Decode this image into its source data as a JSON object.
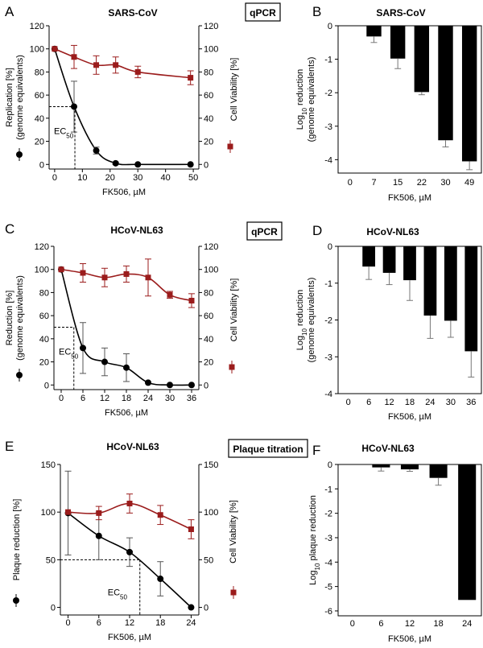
{
  "colors": {
    "primary": "#000000",
    "viability": "#9b1c1c",
    "bar": "#000000"
  },
  "chart_data": [
    {
      "panel": "A",
      "type": "line",
      "title": "SARS-CoV",
      "method": "qPCR",
      "xlabel": "FK506, µM",
      "ylabel_line1": "Replication [%]",
      "ylabel_line2": "(genome equivalents)",
      "y2label": "Cell Viability [%]",
      "xlim": [
        -2,
        52
      ],
      "ylim": [
        -4,
        120
      ],
      "xticks": [
        0,
        10,
        20,
        30,
        40,
        50
      ],
      "yticks": [
        0,
        20,
        40,
        60,
        80,
        100,
        120
      ],
      "ec50": {
        "label": "EC",
        "sub": "50",
        "x": 7.3,
        "y": 50
      },
      "series": [
        {
          "name": "Replication (genome equivalents)",
          "axis": "left",
          "marker": "circle",
          "x": [
            0,
            7,
            15,
            22,
            30,
            49
          ],
          "y": [
            100,
            50,
            12,
            1,
            0,
            0
          ],
          "err": [
            0,
            22,
            3,
            1,
            0,
            0
          ]
        },
        {
          "name": "Cell Viability",
          "axis": "right",
          "marker": "square",
          "x": [
            0,
            7,
            15,
            22,
            30,
            49
          ],
          "y": [
            100,
            93,
            86,
            86,
            80,
            75
          ],
          "err": [
            0,
            10,
            8,
            7,
            5,
            6
          ]
        }
      ]
    },
    {
      "panel": "B",
      "type": "bar",
      "title": "SARS-CoV",
      "xlabel": "FK506, µM",
      "ylabel_pre": "Log",
      "ylabel_sub": "10",
      "ylabel_post": " reduction",
      "ylabel_line2": "(genome equivalents)",
      "ylim": [
        -4.4,
        0
      ],
      "yticks": [
        0,
        -1,
        -2,
        -3,
        -4
      ],
      "categories": [
        "0",
        "7",
        "15",
        "22",
        "30",
        "49"
      ],
      "values": [
        0,
        -0.32,
        -0.98,
        -1.98,
        -3.42,
        -4.05
      ],
      "err": [
        0,
        0.18,
        0.3,
        0.08,
        0.2,
        0.25
      ]
    },
    {
      "panel": "C",
      "type": "line",
      "title": "HCoV-NL63",
      "method": "qPCR",
      "xlabel": "FK506, µM",
      "ylabel_line1": "Reduction [%]",
      "ylabel_line2": "(genome equivalents)",
      "y2label": "Cell Viability [%]",
      "xlim": [
        -2,
        38
      ],
      "ylim": [
        -4,
        120
      ],
      "xticks": [
        0,
        6,
        12,
        18,
        24,
        30,
        36
      ],
      "yticks": [
        0,
        20,
        40,
        60,
        80,
        100,
        120
      ],
      "ec50": {
        "label": "EC",
        "sub": "50",
        "x": 3.5,
        "y": 50
      },
      "series": [
        {
          "name": "Reduction (genome equivalents)",
          "axis": "left",
          "marker": "circle",
          "x": [
            0,
            6,
            12,
            18,
            24,
            30,
            36
          ],
          "y": [
            100,
            32,
            20,
            15,
            2,
            0,
            0
          ],
          "err": [
            0,
            22,
            12,
            12,
            0,
            0,
            0
          ]
        },
        {
          "name": "Cell Viability",
          "axis": "right",
          "marker": "square",
          "x": [
            0,
            6,
            12,
            18,
            24,
            30,
            36
          ],
          "y": [
            100,
            97,
            93,
            96,
            93,
            78,
            73
          ],
          "err": [
            0,
            8,
            8,
            7,
            16,
            3,
            6
          ]
        }
      ]
    },
    {
      "panel": "D",
      "type": "bar",
      "title": "HCoV-NL63",
      "xlabel": "FK506, µM",
      "ylabel_pre": "Log",
      "ylabel_sub": "10",
      "ylabel_post": " reduction",
      "ylabel_line2": "(genome equivalents)",
      "ylim": [
        -4,
        0
      ],
      "yticks": [
        0,
        -1,
        -2,
        -3,
        -4
      ],
      "categories": [
        "0",
        "6",
        "12",
        "18",
        "24",
        "30",
        "36"
      ],
      "values": [
        0,
        -0.55,
        -0.72,
        -0.92,
        -1.88,
        -2.02,
        -2.85
      ],
      "err": [
        0,
        0.35,
        0.32,
        0.55,
        0.62,
        0.45,
        0.7
      ]
    },
    {
      "panel": "E",
      "type": "line",
      "title": "HCoV-NL63",
      "method": "Plaque titration",
      "xlabel": "FK506, µM",
      "ylabel_line1": "Plaque reduction [%]",
      "y2label": "Cell Viability [%]",
      "xlim": [
        -1.5,
        25.5
      ],
      "ylim": [
        -8,
        150
      ],
      "xticks": [
        0,
        6,
        12,
        18,
        24
      ],
      "yticks": [
        0,
        50,
        100,
        150
      ],
      "ec50": {
        "label": "EC",
        "sub": "50",
        "x": 14,
        "y": 50
      },
      "series": [
        {
          "name": "Plaque reduction",
          "axis": "left",
          "marker": "circle",
          "x": [
            0,
            6,
            12,
            18,
            24
          ],
          "y": [
            99,
            75,
            58,
            30,
            0
          ],
          "err": [
            44,
            25,
            15,
            18,
            0
          ]
        },
        {
          "name": "Cell Viability",
          "axis": "right",
          "marker": "square",
          "x": [
            0,
            6,
            12,
            18,
            24
          ],
          "y": [
            100,
            99,
            109,
            97,
            82
          ],
          "err": [
            0,
            7,
            10,
            10,
            10
          ]
        }
      ]
    },
    {
      "panel": "F",
      "type": "bar",
      "title": "HCoV-NL63",
      "xlabel": "FK506, µM",
      "ylabel_pre": "Log",
      "ylabel_sub": "10",
      "ylabel_post": " plaque reduction",
      "ylim": [
        -6.2,
        0
      ],
      "yticks": [
        0,
        -1,
        -2,
        -3,
        -4,
        -5,
        -6
      ],
      "categories": [
        "0",
        "6",
        "12",
        "18",
        "24"
      ],
      "values": [
        0,
        -0.12,
        -0.2,
        -0.55,
        -5.55
      ],
      "err": [
        0,
        0.15,
        0.08,
        0.3,
        0
      ]
    }
  ]
}
